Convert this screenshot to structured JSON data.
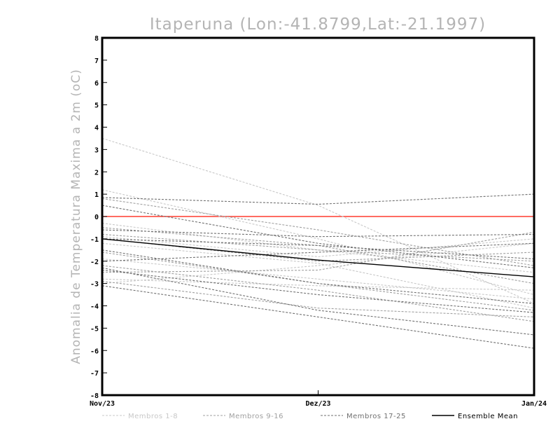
{
  "chart_data": {
    "type": "line",
    "title": "Itaperuna (Lon:-41.8799,Lat:-21.1997)",
    "xlabel": "",
    "ylabel": "Anomalia de Temperatura Maxima a 2m (oC)",
    "categories": [
      "Nov/23",
      "Dez/23",
      "Jan/24"
    ],
    "ylim": [
      -8,
      8
    ],
    "yticks": [
      -8,
      -7,
      -6,
      -5,
      -4,
      -3,
      -2,
      -1,
      0,
      1,
      2,
      3,
      4,
      5,
      6,
      7,
      8
    ],
    "grid": false,
    "legend_position": "bottom",
    "reference_line": {
      "value": 0,
      "color": "#ff3b2f"
    },
    "colors": {
      "Membros 1-8": "#c8c8c8",
      "Membros 9-16": "#a0a0a0",
      "Membros 17-25": "#707070",
      "Ensemble Mean": "#000000"
    },
    "legend": [
      "Membros 1-8",
      "Membros 9-16",
      "Membros 17-25",
      "Ensemble Mean"
    ],
    "series": [
      {
        "group": "Membros 1-8",
        "values": [
          3.5,
          0.5,
          -3.9
        ]
      },
      {
        "group": "Membros 1-8",
        "values": [
          1.2,
          -1.0,
          -3.5
        ]
      },
      {
        "group": "Membros 1-8",
        "values": [
          -0.3,
          -1.5,
          -2.5
        ]
      },
      {
        "group": "Membros 1-8",
        "values": [
          -1.2,
          -2.1,
          -4.1
        ]
      },
      {
        "group": "Membros 1-8",
        "values": [
          -2.8,
          -3.1,
          -3.3
        ]
      },
      {
        "group": "Membros 1-8",
        "values": [
          -3.0,
          -2.2,
          -1.2
        ]
      },
      {
        "group": "Membros 1-8",
        "values": [
          -1.9,
          -2.8,
          -3.7
        ]
      },
      {
        "group": "Membros 1-8",
        "values": [
          -0.9,
          -1.8,
          -1.0
        ]
      },
      {
        "group": "Membros 9-16",
        "values": [
          0.8,
          -0.6,
          -2.2
        ]
      },
      {
        "group": "Membros 9-16",
        "values": [
          -0.5,
          -1.3,
          -3.0
        ]
      },
      {
        "group": "Membros 9-16",
        "values": [
          -1.0,
          -2.0,
          -1.6
        ]
      },
      {
        "group": "Membros 9-16",
        "values": [
          -2.5,
          -2.4,
          -0.7
        ]
      },
      {
        "group": "Membros 9-16",
        "values": [
          -2.9,
          -4.1,
          -4.5
        ]
      },
      {
        "group": "Membros 9-16",
        "values": [
          -1.6,
          -3.0,
          -4.2
        ]
      },
      {
        "group": "Membros 9-16",
        "values": [
          -0.8,
          -1.5,
          -2.0
        ]
      },
      {
        "group": "Membros 9-16",
        "values": [
          -2.2,
          -3.3,
          -4.7
        ]
      },
      {
        "group": "Membros 17-25",
        "values": [
          0.85,
          0.55,
          1.0
        ]
      },
      {
        "group": "Membros 17-25",
        "values": [
          0.5,
          -1.2,
          -2.3
        ]
      },
      {
        "group": "Membros 17-25",
        "values": [
          -0.6,
          -0.9,
          -0.8
        ]
      },
      {
        "group": "Membros 17-25",
        "values": [
          -1.0,
          -1.3,
          -1.9
        ]
      },
      {
        "group": "Membros 17-25",
        "values": [
          -1.5,
          -3.0,
          -3.9
        ]
      },
      {
        "group": "Membros 17-25",
        "values": [
          -2.4,
          -3.5,
          -4.3
        ]
      },
      {
        "group": "Membros 17-25",
        "values": [
          -3.1,
          -4.5,
          -5.9
        ]
      },
      {
        "group": "Membros 17-25",
        "values": [
          -2.0,
          -1.6,
          -1.2
        ]
      },
      {
        "group": "Membros 17-25",
        "values": [
          -2.3,
          -4.2,
          -5.3
        ]
      },
      {
        "group": "Ensemble Mean",
        "name": "Ensemble Mean",
        "values": [
          -1.0,
          -1.95,
          -2.7
        ]
      }
    ]
  }
}
